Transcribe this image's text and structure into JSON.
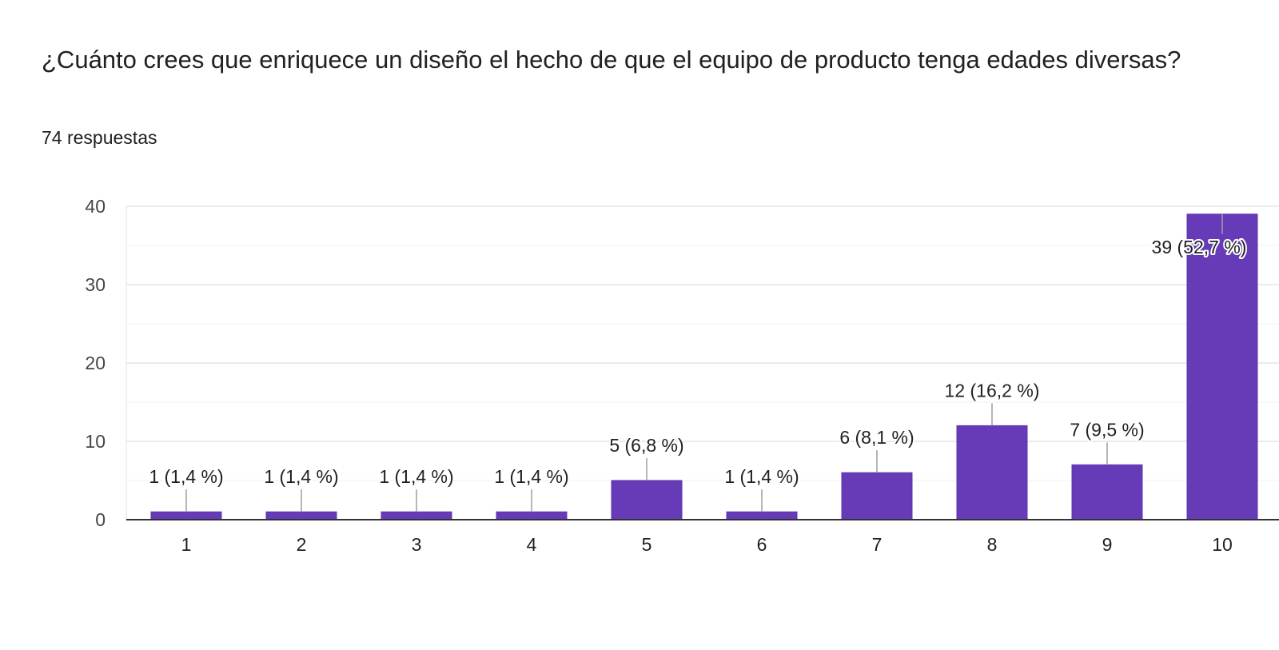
{
  "header": {
    "title": "¿Cuánto crees que enriquece un diseño el hecho de que el equipo de producto tenga edades diversas?",
    "responses": "74 respuestas"
  },
  "colors": {
    "bar": "#673ab7",
    "grid": "#ebebeb",
    "minor_grid": "#f5f5f5",
    "axis": "#333333",
    "leader": "#9e9e9e"
  },
  "chart_data": {
    "type": "bar",
    "categories": [
      "1",
      "2",
      "3",
      "4",
      "5",
      "6",
      "7",
      "8",
      "9",
      "10"
    ],
    "values": [
      1,
      1,
      1,
      1,
      5,
      1,
      6,
      12,
      7,
      39
    ],
    "data_labels": [
      "1 (1,4 %)",
      "1 (1,4 %)",
      "1 (1,4 %)",
      "1 (1,4 %)",
      "5 (6,8 %)",
      "1 (1,4 %)",
      "6 (8,1 %)",
      "12 (16,2 %)",
      "7 (9,5 %)",
      "39 (52,7 %)"
    ],
    "title": "¿Cuánto crees que enriquece un diseño el hecho de que el equipo de producto tenga edades diversas?",
    "subtitle": "74 respuestas",
    "xlabel": "",
    "ylabel": "",
    "ylim": [
      0,
      40
    ],
    "yticks": [
      0,
      10,
      20,
      30,
      40
    ],
    "grid": true,
    "legend": "none"
  }
}
